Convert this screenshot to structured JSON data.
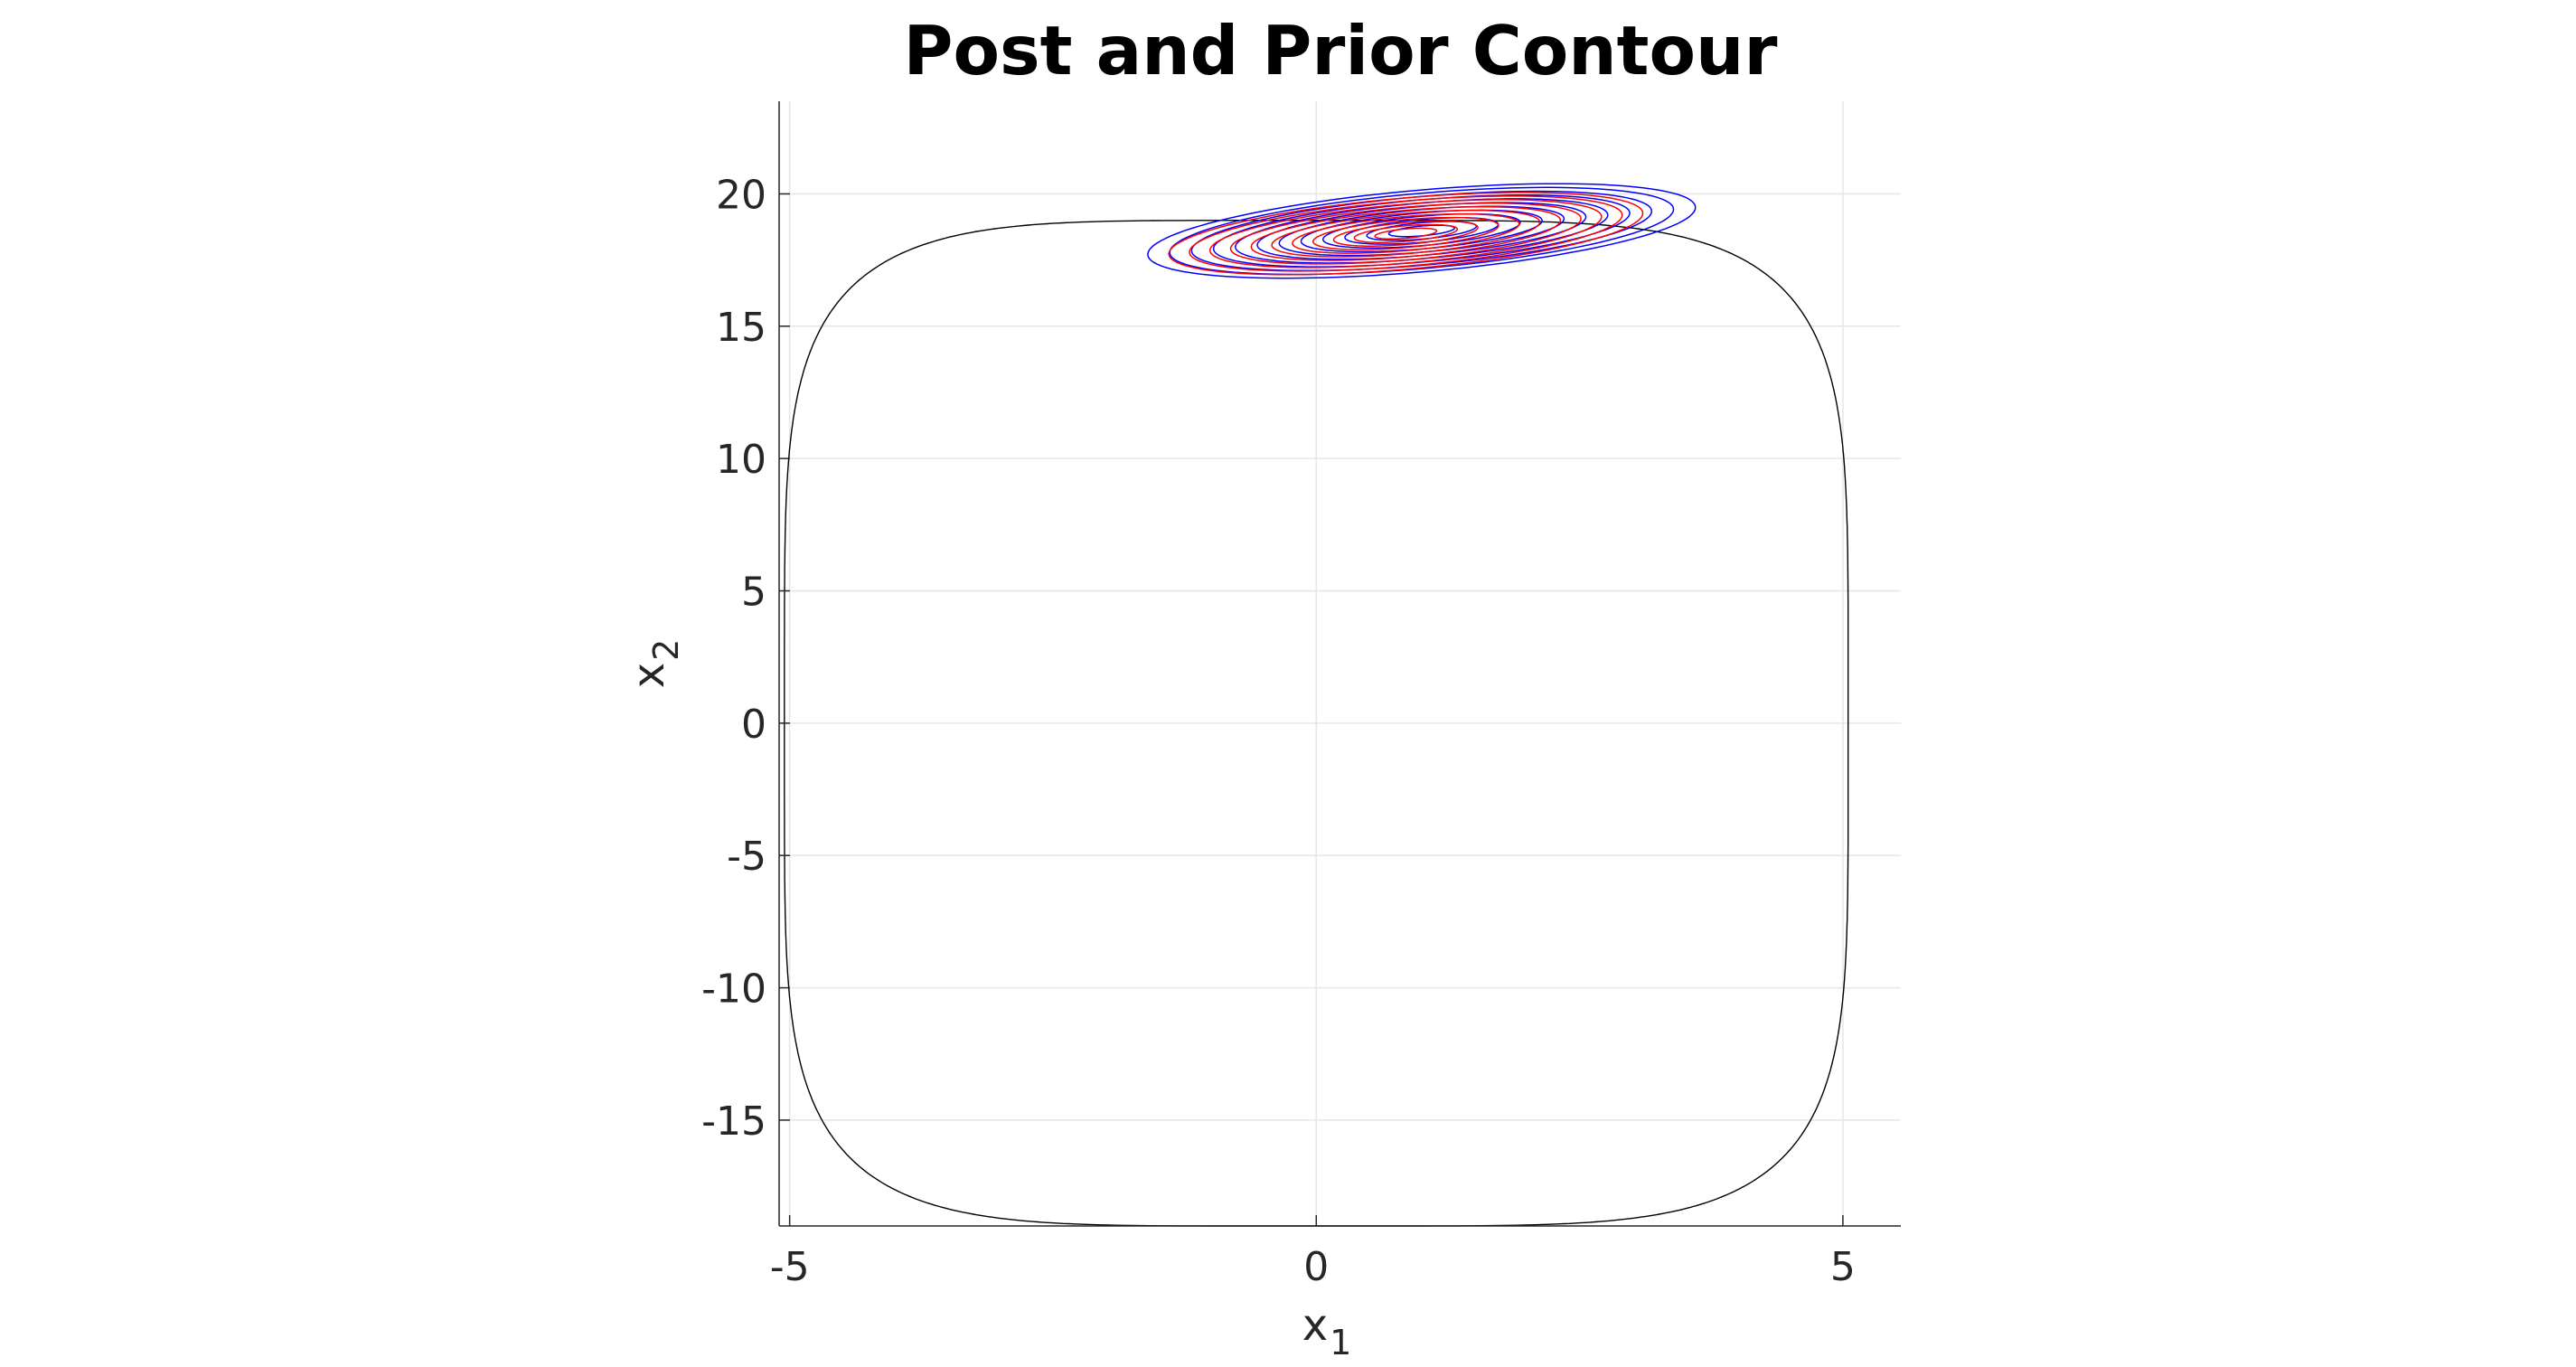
{
  "chart_data": {
    "type": "contour",
    "title": "Post and Prior Contour",
    "xlabel": "x",
    "xlabel_sub": "1",
    "ylabel": "x",
    "ylabel_sub": "2",
    "xlim": [
      -5.1,
      5.55
    ],
    "ylim": [
      -19,
      23.5
    ],
    "xticks": [
      -5,
      0,
      5
    ],
    "xtick_labels": [
      "-5",
      "0",
      "5"
    ],
    "yticks": [
      -15,
      -10,
      -5,
      0,
      5,
      10,
      15,
      20
    ],
    "ytick_labels": [
      "-15",
      "-10",
      "-5",
      "0",
      "5",
      "10",
      "15",
      "20"
    ],
    "grid": true,
    "colors": {
      "trajectory": "#000000",
      "prior_contour": "#0000ff",
      "posterior_contour": "#ff0000",
      "grid": "#e6e6e6",
      "axis": "#262626"
    },
    "trajectory": {
      "x_amplitude": 5.05,
      "y_amplitude": 19
    },
    "prior_contours": {
      "center": [
        1.0,
        18.6
      ],
      "outer_x_halfwidth": 2.6,
      "outer_y_halfheight": 1.55,
      "tilt_slope": 0.62,
      "levels": 12
    },
    "posterior_contours": {
      "center": [
        0.85,
        18.5
      ],
      "outer_x_halfwidth": 2.25,
      "outer_y_halfheight": 1.35,
      "tilt_slope": 0.62,
      "levels": 11
    }
  }
}
